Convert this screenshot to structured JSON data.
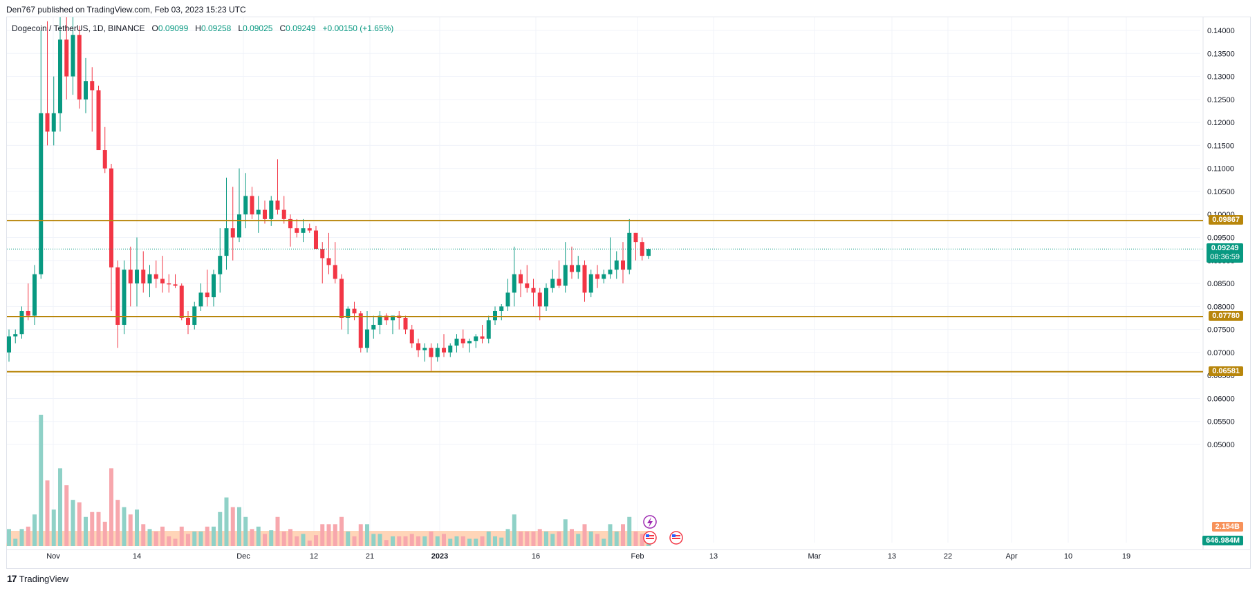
{
  "attribution": "Den767 published on TradingView.com, Feb 03, 2023 15:23 UTC",
  "legend": {
    "symbol": "Dogecoin / TetherUS, 1D, BINANCE",
    "open_label": "O",
    "open": "0.09099",
    "high_label": "H",
    "high": "0.09258",
    "low_label": "L",
    "low": "0.09025",
    "close_label": "C",
    "close": "0.09249",
    "change": "+0.00150 (+1.65%)"
  },
  "footer": {
    "logo": "17",
    "brand": "TradingView"
  },
  "colors": {
    "up": "#089981",
    "down": "#f23645",
    "vol_up": "#8fd1c7",
    "vol_down": "#f7a7ad",
    "level": "#b8860b",
    "current": "#089981",
    "grid": "#f0f3fa",
    "text": "#131722",
    "vol_ma_fill": "#ffd0b0",
    "vol_ma_tag": "#f7925a"
  },
  "tags": {
    "level_1": "0.09867",
    "level_2": "0.07780",
    "level_3": "0.06581",
    "current_price": "0.09249",
    "countdown": "08:36:59",
    "vol_ma": "2.154B",
    "volume": "646.984M"
  },
  "events": {
    "lightning_icon": "lightning-icon",
    "flag_icon": "us-flag-icon"
  },
  "chart_data": {
    "type": "candlestick",
    "symbol": "Dogecoin / TetherUS",
    "interval": "1D",
    "exchange": "BINANCE",
    "y_range": [
      0.04,
      0.142
    ],
    "y_ticks": [
      "0.14000",
      "0.13500",
      "0.13000",
      "0.12500",
      "0.12000",
      "0.11500",
      "0.11000",
      "0.10500",
      "0.10000",
      "0.09500",
      "0.09000",
      "0.08500",
      "0.08000",
      "0.07500",
      "0.07000",
      "0.06500",
      "0.06000",
      "0.05500",
      "0.05000"
    ],
    "x_ticks": [
      "Nov",
      "14",
      "Dec",
      "12",
      "21",
      "2023",
      "16",
      "Feb",
      "13",
      "Mar",
      "13",
      "22",
      "Apr",
      "10",
      "19"
    ],
    "horizontal_levels": [
      0.09867,
      0.0778,
      0.06581
    ],
    "current_price": 0.09249,
    "candles": [
      [
        0.07,
        0.075,
        0.068,
        0.0735
      ],
      [
        0.0735,
        0.075,
        0.072,
        0.074
      ],
      [
        0.074,
        0.08,
        0.073,
        0.079
      ],
      [
        0.079,
        0.085,
        0.077,
        0.078
      ],
      [
        0.078,
        0.089,
        0.076,
        0.087
      ],
      [
        0.087,
        0.14,
        0.086,
        0.122
      ],
      [
        0.122,
        0.142,
        0.115,
        0.118
      ],
      [
        0.118,
        0.13,
        0.115,
        0.122
      ],
      [
        0.122,
        0.15,
        0.118,
        0.138
      ],
      [
        0.138,
        0.15,
        0.125,
        0.13
      ],
      [
        0.13,
        0.145,
        0.126,
        0.139
      ],
      [
        0.139,
        0.141,
        0.123,
        0.125
      ],
      [
        0.125,
        0.134,
        0.122,
        0.129
      ],
      [
        0.129,
        0.132,
        0.118,
        0.127
      ],
      [
        0.127,
        0.128,
        0.114,
        0.114
      ],
      [
        0.114,
        0.119,
        0.109,
        0.11
      ],
      [
        0.11,
        0.111,
        0.079,
        0.0885
      ],
      [
        0.0885,
        0.09,
        0.071,
        0.076
      ],
      [
        0.076,
        0.09,
        0.074,
        0.088
      ],
      [
        0.088,
        0.093,
        0.08,
        0.085
      ],
      [
        0.085,
        0.095,
        0.08,
        0.088
      ],
      [
        0.088,
        0.092,
        0.083,
        0.085
      ],
      [
        0.085,
        0.089,
        0.082,
        0.087
      ],
      [
        0.087,
        0.09,
        0.084,
        0.086
      ],
      [
        0.086,
        0.091,
        0.083,
        0.085
      ],
      [
        0.085,
        0.087,
        0.083,
        0.0848
      ],
      [
        0.0848,
        0.087,
        0.084,
        0.0845
      ],
      [
        0.0845,
        0.085,
        0.077,
        0.0775
      ],
      [
        0.0775,
        0.079,
        0.074,
        0.076
      ],
      [
        0.076,
        0.081,
        0.075,
        0.08
      ],
      [
        0.08,
        0.085,
        0.079,
        0.083
      ],
      [
        0.083,
        0.088,
        0.08,
        0.082
      ],
      [
        0.082,
        0.088,
        0.08,
        0.087
      ],
      [
        0.087,
        0.097,
        0.083,
        0.091
      ],
      [
        0.091,
        0.108,
        0.088,
        0.097
      ],
      [
        0.097,
        0.106,
        0.09,
        0.095
      ],
      [
        0.095,
        0.11,
        0.094,
        0.1
      ],
      [
        0.1,
        0.109,
        0.097,
        0.104
      ],
      [
        0.104,
        0.106,
        0.099,
        0.1
      ],
      [
        0.1,
        0.104,
        0.096,
        0.101
      ],
      [
        0.101,
        0.103,
        0.098,
        0.099
      ],
      [
        0.099,
        0.104,
        0.0975,
        0.103
      ],
      [
        0.103,
        0.112,
        0.1,
        0.101
      ],
      [
        0.101,
        0.104,
        0.098,
        0.099
      ],
      [
        0.099,
        0.1,
        0.093,
        0.097
      ],
      [
        0.097,
        0.099,
        0.095,
        0.096
      ],
      [
        0.096,
        0.099,
        0.094,
        0.097
      ],
      [
        0.097,
        0.098,
        0.096,
        0.0965
      ],
      [
        0.0965,
        0.0975,
        0.093,
        0.0925
      ],
      [
        0.0925,
        0.094,
        0.085,
        0.0905
      ],
      [
        0.0905,
        0.096,
        0.087,
        0.089
      ],
      [
        0.089,
        0.094,
        0.085,
        0.086
      ],
      [
        0.086,
        0.087,
        0.075,
        0.0775
      ],
      [
        0.0775,
        0.08,
        0.074,
        0.0795
      ],
      [
        0.0795,
        0.081,
        0.077,
        0.0785
      ],
      [
        0.0785,
        0.079,
        0.07,
        0.071
      ],
      [
        0.071,
        0.079,
        0.07,
        0.075
      ],
      [
        0.075,
        0.078,
        0.073,
        0.076
      ],
      [
        0.076,
        0.079,
        0.074,
        0.078
      ],
      [
        0.078,
        0.0785,
        0.076,
        0.077
      ],
      [
        0.077,
        0.078,
        0.074,
        0.078
      ],
      [
        0.078,
        0.079,
        0.075,
        0.0775
      ],
      [
        0.0775,
        0.078,
        0.074,
        0.075
      ],
      [
        0.075,
        0.076,
        0.071,
        0.072
      ],
      [
        0.072,
        0.073,
        0.069,
        0.0705
      ],
      [
        0.0705,
        0.072,
        0.068,
        0.071
      ],
      [
        0.071,
        0.072,
        0.066,
        0.069
      ],
      [
        0.069,
        0.072,
        0.068,
        0.071
      ],
      [
        0.071,
        0.074,
        0.069,
        0.07
      ],
      [
        0.07,
        0.072,
        0.069,
        0.0715
      ],
      [
        0.0715,
        0.074,
        0.07,
        0.073
      ],
      [
        0.073,
        0.075,
        0.071,
        0.072
      ],
      [
        0.072,
        0.073,
        0.07,
        0.0725
      ],
      [
        0.0725,
        0.074,
        0.071,
        0.0735
      ],
      [
        0.0735,
        0.076,
        0.072,
        0.073
      ],
      [
        0.073,
        0.078,
        0.072,
        0.077
      ],
      [
        0.077,
        0.08,
        0.076,
        0.079
      ],
      [
        0.079,
        0.0805,
        0.077,
        0.08
      ],
      [
        0.08,
        0.086,
        0.079,
        0.083
      ],
      [
        0.083,
        0.093,
        0.08,
        0.087
      ],
      [
        0.087,
        0.088,
        0.082,
        0.085
      ],
      [
        0.085,
        0.089,
        0.083,
        0.084
      ],
      [
        0.084,
        0.086,
        0.08,
        0.083
      ],
      [
        0.083,
        0.084,
        0.077,
        0.08
      ],
      [
        0.08,
        0.085,
        0.079,
        0.084
      ],
      [
        0.084,
        0.088,
        0.083,
        0.086
      ],
      [
        0.086,
        0.09,
        0.084,
        0.0845
      ],
      [
        0.0845,
        0.094,
        0.083,
        0.089
      ],
      [
        0.089,
        0.093,
        0.086,
        0.0875
      ],
      [
        0.0875,
        0.091,
        0.086,
        0.089
      ],
      [
        0.089,
        0.09,
        0.081,
        0.083
      ],
      [
        0.083,
        0.088,
        0.082,
        0.087
      ],
      [
        0.087,
        0.089,
        0.084,
        0.086
      ],
      [
        0.086,
        0.088,
        0.085,
        0.087
      ],
      [
        0.087,
        0.095,
        0.086,
        0.088
      ],
      [
        0.088,
        0.092,
        0.086,
        0.09
      ],
      [
        0.09,
        0.094,
        0.085,
        0.088
      ],
      [
        0.088,
        0.099,
        0.087,
        0.096
      ],
      [
        0.096,
        0.096,
        0.09,
        0.094
      ],
      [
        0.094,
        0.095,
        0.09,
        0.091
      ],
      [
        0.091,
        0.0926,
        0.0903,
        0.0925
      ]
    ],
    "volume_max_label": "2.154B"
  }
}
